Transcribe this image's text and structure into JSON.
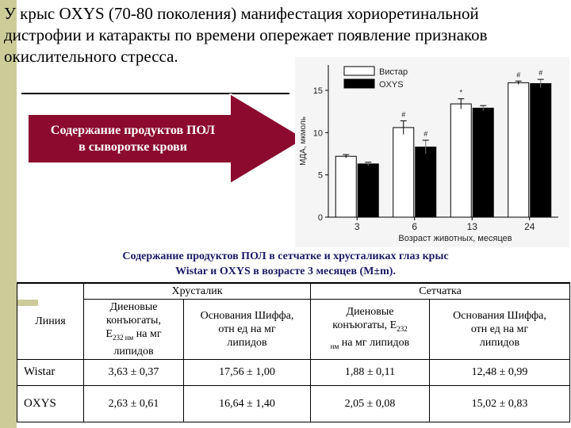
{
  "slide": {
    "title_lines": [
      "У крыс OXYS (70-80 поколения) манифестация хориоретинальной",
      "дистрофии  и катаракты по времени опережает появление признаков",
      "окислительного стресса."
    ],
    "arrow_text_lines": [
      "Содержание продуктов ПОЛ",
      "в сыворотке крови"
    ],
    "accent_color": "#8b0a2e",
    "band_color": "#cccc99"
  },
  "chart_data": {
    "type": "bar",
    "categories": [
      "3",
      "6",
      "13",
      "24"
    ],
    "series": [
      {
        "name": "Вистар",
        "color": "#ffffff",
        "values": [
          7.2,
          10.6,
          13.4,
          15.9
        ],
        "errors": [
          0.2,
          0.8,
          0.6,
          0.2
        ],
        "markers": [
          "",
          "#",
          "*",
          "#"
        ]
      },
      {
        "name": "OXYS",
        "color": "#000000",
        "values": [
          6.3,
          8.3,
          12.9,
          15.8
        ],
        "errors": [
          0.2,
          0.8,
          0.3,
          0.5
        ],
        "markers": [
          "",
          "#",
          "",
          "#"
        ]
      }
    ],
    "xlabel": "Возраст животных, месяцев",
    "ylabel": "МДА, мкмоль",
    "ylim": [
      0,
      18
    ],
    "yticks": [
      0,
      5,
      10,
      15
    ],
    "legend": "top-left"
  },
  "table": {
    "caption_lines": [
      "Содержание продуктов ПОЛ в сетчатке и хрусталиках глаз крыс",
      "Wistar и OXYS в возрасте 3 месяцев (M±m)."
    ],
    "group_headers": [
      "Хрусталик",
      "Сетчатка"
    ],
    "line_header": "Линия",
    "col_headers": [
      {
        "line1": "Диеновые",
        "line2": "конъюгаты,",
        "line3_main": "E",
        "line3_sub": "232 нм",
        "line3_rest": " на мг",
        "line4": "липидов"
      },
      {
        "line1": "Основания Шиффа,",
        "line2": "отн ед на мг",
        "line3": "липидов"
      },
      {
        "line1": "Диеновые",
        "line2": "конъюгаты, E",
        "line2_sub": "232",
        "line3_sub": "нм",
        "line3_rest": " на мг липидов"
      },
      {
        "line1": "Основания Шиффа,",
        "line2": "отн ед на мг",
        "line3": "липидов"
      }
    ],
    "rows": [
      {
        "name": "Wistar",
        "values": [
          "3,63 ± 0,37",
          "17,56 ± 1,00",
          "1,88 ± 0,11",
          "12,48 ± 0,99"
        ]
      },
      {
        "name": "OXYS",
        "values": [
          "2,63 ± 0,61",
          "16,64 ± 1,40",
          "2,05 ± 0,08",
          "15,02 ± 0,83"
        ]
      }
    ]
  }
}
